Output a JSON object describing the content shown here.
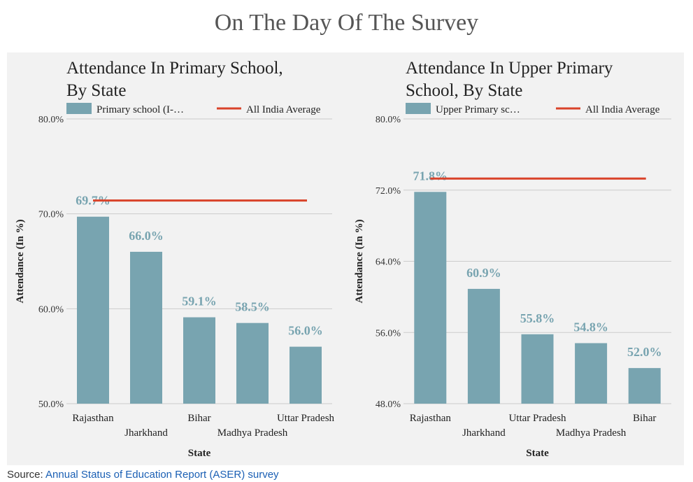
{
  "title": "On The Day Of The Survey",
  "source": {
    "label": "Source:",
    "link_text": "Annual Status of Education Report (ASER) survey"
  },
  "colors": {
    "bar": "#78a4b0",
    "average": "#d9432a",
    "grid": "#cccccc",
    "background": "#f2f2f2"
  },
  "chart_data": [
    {
      "type": "bar",
      "title": [
        "Attendance In Primary School,",
        "By State"
      ],
      "legend": {
        "bar": "Primary school (I-…",
        "line": "All India Average",
        "position": "top"
      },
      "categories": [
        "Rajasthan",
        "Jharkhand",
        "Bihar",
        "Madhya Pradesh",
        "Uttar Pradesh"
      ],
      "values": [
        69.7,
        66.0,
        59.1,
        58.5,
        56.0
      ],
      "data_labels": [
        "69.7%",
        "66.0%",
        "59.1%",
        "58.5%",
        "56.0%"
      ],
      "average": 71.4,
      "xlabel": "State",
      "ylabel": "Attendance (In %)",
      "ylim": [
        50,
        80
      ],
      "yticks": [
        50,
        60,
        70,
        80
      ],
      "ytick_labels": [
        "50.0%",
        "60.0%",
        "70.0%",
        "80.0%"
      ],
      "grid": true
    },
    {
      "type": "bar",
      "title": [
        "Attendance In Upper Primary",
        "School, By State"
      ],
      "legend": {
        "bar": "Upper Primary sc…",
        "line": "All India Average",
        "position": "top"
      },
      "categories": [
        "Rajasthan",
        "Jharkhand",
        "Uttar Pradesh",
        "Madhya Pradesh",
        "Bihar"
      ],
      "values": [
        71.8,
        60.9,
        55.8,
        54.8,
        52.0
      ],
      "data_labels": [
        "71.8%",
        "60.9%",
        "55.8%",
        "54.8%",
        "52.0%"
      ],
      "average": 73.3,
      "xlabel": "State",
      "ylabel": "Attendance (In %)",
      "ylim": [
        48,
        80
      ],
      "yticks": [
        48,
        56,
        64,
        72,
        80
      ],
      "ytick_labels": [
        "48.0%",
        "56.0%",
        "64.0%",
        "72.0%",
        "80.0%"
      ],
      "grid": true
    }
  ]
}
